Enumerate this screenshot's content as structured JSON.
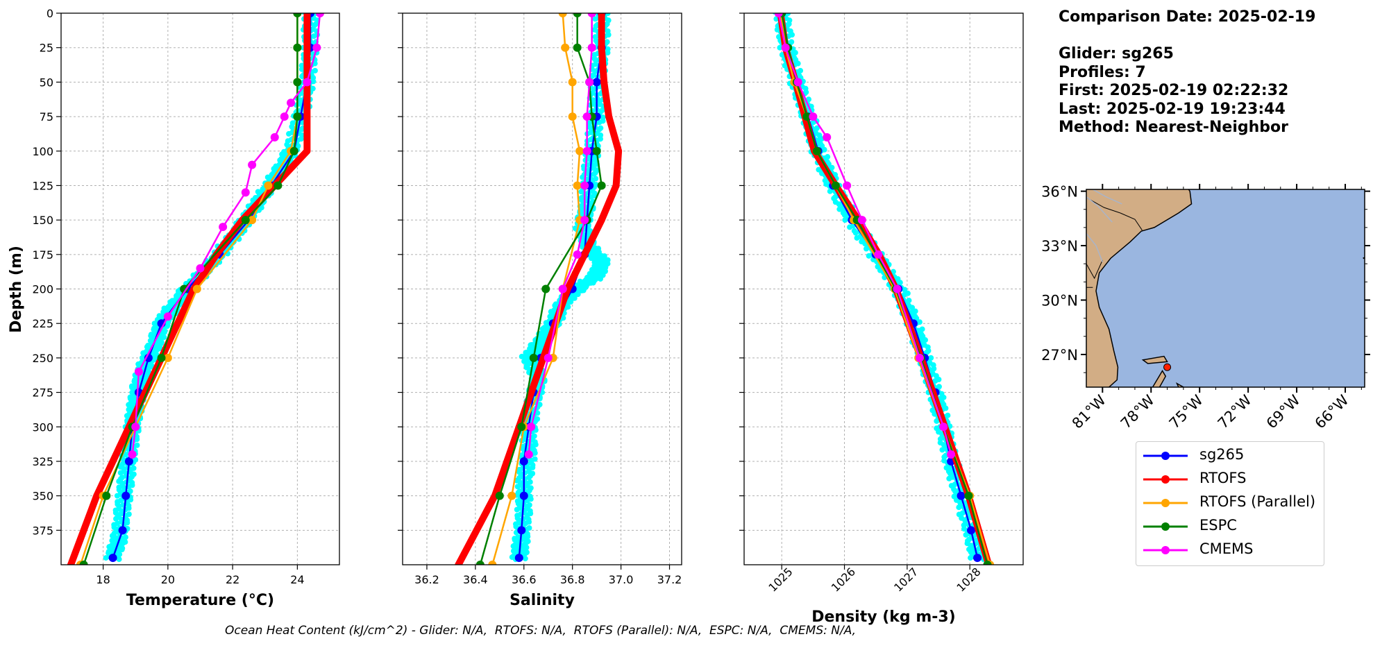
{
  "chart_data": [
    {
      "type": "line",
      "xlabel": "Temperature (°C)",
      "ylabel": "Depth (m)",
      "xlim": [
        16.7,
        25.3
      ],
      "ylim": [
        400,
        0
      ],
      "xticks": [
        "18",
        "20",
        "22",
        "24"
      ],
      "yticks": [
        "0",
        "25",
        "50",
        "75",
        "100",
        "125",
        "150",
        "175",
        "200",
        "225",
        "250",
        "275",
        "300",
        "325",
        "350",
        "375"
      ],
      "grid": true,
      "series": [
        {
          "name": "sg265",
          "color": "#0000ff",
          "depth": [
            0,
            25,
            50,
            75,
            100,
            125,
            150,
            175,
            200,
            225,
            250,
            275,
            300,
            325,
            350,
            375,
            395
          ],
          "values": [
            24.4,
            24.4,
            24.3,
            24.1,
            23.9,
            23.2,
            22.5,
            21.6,
            20.6,
            19.8,
            19.4,
            19.1,
            18.9,
            18.8,
            18.7,
            18.6,
            18.3
          ]
        },
        {
          "name": "RTOFS",
          "color": "#ff0000",
          "depth": [
            0,
            25,
            50,
            75,
            100,
            125,
            150,
            175,
            200,
            250,
            300,
            350,
            400
          ],
          "values": [
            24.3,
            24.3,
            24.3,
            24.3,
            24.3,
            23.3,
            22.3,
            21.5,
            20.8,
            19.8,
            18.8,
            17.8,
            17.0
          ]
        },
        {
          "name": "RTOFS (Parallel)",
          "color": "#ffa500",
          "depth": [
            0,
            25,
            50,
            75,
            100,
            125,
            150,
            200,
            250,
            300,
            350,
            400
          ],
          "values": [
            24.0,
            24.0,
            24.0,
            24.0,
            23.8,
            23.1,
            22.6,
            20.9,
            20.0,
            19.0,
            18.0,
            17.3
          ]
        },
        {
          "name": "ESPC",
          "color": "#008000",
          "depth": [
            0,
            25,
            50,
            75,
            100,
            125,
            150,
            200,
            250,
            300,
            350,
            400
          ],
          "values": [
            24.0,
            24.0,
            24.0,
            24.0,
            23.9,
            23.4,
            22.4,
            20.5,
            19.8,
            18.9,
            18.1,
            17.4
          ]
        },
        {
          "name": "CMEMS",
          "color": "#ff00ff",
          "depth": [
            0,
            25,
            50,
            65,
            75,
            90,
            110,
            130,
            155,
            185,
            220,
            260,
            300,
            320
          ],
          "values": [
            24.7,
            24.6,
            24.3,
            23.8,
            23.6,
            23.3,
            22.6,
            22.4,
            21.7,
            21.0,
            20.0,
            19.1,
            19.0,
            18.9
          ]
        }
      ],
      "scatter": {
        "name": "glider observations",
        "color": "#00ffff",
        "depth": [
          0,
          25,
          50,
          75,
          100,
          120,
          140,
          160,
          180,
          200,
          215,
          225,
          240,
          255,
          270,
          285,
          300,
          320,
          340,
          360,
          380,
          395
        ],
        "values": [
          24.4,
          24.4,
          24.3,
          24.1,
          23.8,
          23.3,
          22.7,
          22.1,
          21.4,
          20.6,
          20.1,
          19.8,
          19.6,
          19.3,
          19.1,
          19.0,
          18.9,
          18.8,
          18.7,
          18.6,
          18.5,
          18.3
        ]
      }
    },
    {
      "type": "line",
      "xlabel": "Salinity",
      "ylim": [
        400,
        0
      ],
      "xlim": [
        36.1,
        37.25
      ],
      "xticks": [
        "36.2",
        "36.4",
        "36.6",
        "36.8",
        "37.0",
        "37.2"
      ],
      "grid": true,
      "series": [
        {
          "name": "sg265",
          "color": "#0000ff",
          "depth": [
            0,
            25,
            50,
            75,
            100,
            125,
            150,
            175,
            200,
            225,
            250,
            275,
            300,
            325,
            350,
            375,
            395
          ],
          "values": [
            36.92,
            36.92,
            36.9,
            36.9,
            36.88,
            36.87,
            36.86,
            36.85,
            36.8,
            36.72,
            36.67,
            36.64,
            36.62,
            36.6,
            36.6,
            36.59,
            36.58
          ]
        },
        {
          "name": "RTOFS",
          "color": "#ff0000",
          "depth": [
            0,
            25,
            50,
            75,
            100,
            125,
            150,
            200,
            250,
            300,
            350,
            400
          ],
          "values": [
            36.92,
            36.92,
            36.93,
            36.95,
            36.99,
            36.98,
            36.92,
            36.78,
            36.68,
            36.58,
            36.48,
            36.33
          ]
        },
        {
          "name": "RTOFS (Parallel)",
          "color": "#ffa500",
          "depth": [
            0,
            25,
            50,
            75,
            100,
            125,
            150,
            200,
            250,
            300,
            350,
            400
          ],
          "values": [
            36.76,
            36.77,
            36.8,
            36.8,
            36.83,
            36.82,
            36.83,
            36.76,
            36.72,
            36.6,
            36.55,
            36.47
          ]
        },
        {
          "name": "ESPC",
          "color": "#008000",
          "depth": [
            0,
            25,
            50,
            75,
            100,
            125,
            150,
            200,
            250,
            300,
            350,
            400
          ],
          "values": [
            36.82,
            36.82,
            36.87,
            36.88,
            36.9,
            36.92,
            36.86,
            36.69,
            36.64,
            36.59,
            36.5,
            36.42
          ]
        },
        {
          "name": "CMEMS",
          "color": "#ff00ff",
          "depth": [
            0,
            25,
            50,
            75,
            100,
            125,
            150,
            175,
            200,
            250,
            300,
            320
          ],
          "values": [
            36.88,
            36.88,
            36.87,
            36.86,
            36.86,
            36.85,
            36.85,
            36.82,
            36.76,
            36.7,
            36.63,
            36.62
          ]
        }
      ],
      "scatter": {
        "name": "glider observations",
        "color": "#00ffff",
        "depth": [
          0,
          25,
          50,
          75,
          100,
          120,
          140,
          155,
          170,
          180,
          190,
          200,
          210,
          225,
          240,
          250,
          265,
          280,
          300,
          320,
          340,
          360,
          380,
          395
        ],
        "values": [
          36.92,
          36.92,
          36.9,
          36.9,
          36.88,
          36.87,
          36.86,
          36.84,
          36.87,
          36.92,
          36.9,
          36.82,
          36.76,
          36.72,
          36.66,
          36.62,
          36.66,
          36.64,
          36.62,
          36.62,
          36.6,
          36.6,
          36.59,
          36.58
        ]
      }
    },
    {
      "type": "line",
      "xlabel": "Density (kg m-3)",
      "ylim": [
        400,
        0
      ],
      "xlim": [
        1024.4,
        1028.85
      ],
      "xticks": [
        "1025",
        "1026",
        "1027",
        "1028"
      ],
      "grid": true,
      "series": [
        {
          "name": "sg265",
          "color": "#0000ff",
          "depth": [
            0,
            25,
            50,
            75,
            100,
            125,
            150,
            175,
            200,
            225,
            250,
            275,
            300,
            325,
            350,
            375,
            395
          ],
          "values": [
            1025.0,
            1025.08,
            1025.24,
            1025.42,
            1025.58,
            1025.82,
            1026.12,
            1026.5,
            1026.86,
            1027.1,
            1027.28,
            1027.45,
            1027.58,
            1027.7,
            1027.86,
            1028.02,
            1028.12
          ]
        },
        {
          "name": "RTOFS",
          "color": "#ff0000",
          "depth": [
            0,
            25,
            50,
            75,
            100,
            125,
            150,
            175,
            200,
            250,
            300,
            350,
            400
          ],
          "values": [
            1024.98,
            1025.06,
            1025.22,
            1025.37,
            1025.52,
            1025.86,
            1026.22,
            1026.55,
            1026.82,
            1027.22,
            1027.6,
            1027.98,
            1028.3
          ]
        },
        {
          "name": "RTOFS (Parallel)",
          "color": "#ffa500",
          "depth": [
            0,
            25,
            50,
            75,
            100,
            125,
            150,
            200,
            250,
            300,
            350,
            400
          ],
          "values": [
            1024.98,
            1025.06,
            1025.2,
            1025.4,
            1025.56,
            1025.86,
            1026.15,
            1026.8,
            1027.18,
            1027.58,
            1028.0,
            1028.32
          ]
        },
        {
          "name": "ESPC",
          "color": "#008000",
          "depth": [
            0,
            25,
            50,
            75,
            100,
            125,
            150,
            200,
            250,
            300,
            350,
            400
          ],
          "values": [
            1025.0,
            1025.1,
            1025.24,
            1025.4,
            1025.56,
            1025.86,
            1026.2,
            1026.82,
            1027.22,
            1027.58,
            1027.98,
            1028.28
          ]
        },
        {
          "name": "CMEMS",
          "color": "#ff00ff",
          "depth": [
            0,
            25,
            50,
            75,
            90,
            125,
            150,
            175,
            200,
            250,
            300,
            320
          ],
          "values": [
            1024.95,
            1025.06,
            1025.26,
            1025.5,
            1025.72,
            1026.04,
            1026.28,
            1026.54,
            1026.84,
            1027.2,
            1027.58,
            1027.7
          ]
        }
      ],
      "scatter": {
        "name": "glider observations",
        "color": "#00ffff",
        "depth": [
          0,
          25,
          50,
          75,
          100,
          125,
          150,
          175,
          200,
          225,
          250,
          275,
          300,
          325,
          350,
          375,
          395
        ],
        "values": [
          1025.0,
          1025.08,
          1025.24,
          1025.42,
          1025.58,
          1025.82,
          1026.12,
          1026.5,
          1026.86,
          1027.1,
          1027.28,
          1027.45,
          1027.58,
          1027.7,
          1027.86,
          1028.02,
          1028.12
        ]
      }
    }
  ],
  "map": {
    "lat_ticks": [
      "36°N",
      "33°N",
      "30°N",
      "27°N"
    ],
    "lon_ticks": [
      "81°W",
      "78°W",
      "75°W",
      "72°W",
      "69°W",
      "66°W"
    ],
    "lat_values": [
      36,
      33,
      30,
      27
    ],
    "lon_values": [
      -81,
      -78,
      -75,
      -72,
      -69,
      -66
    ],
    "lat_range": [
      25.2,
      36.1
    ],
    "lon_range": [
      -82.0,
      -64.8
    ],
    "ocean_color": "#9ab6e0",
    "land_color": "#d2ad85",
    "glider_location": {
      "lat": 26.3,
      "lon": -77.0,
      "color": "#ff2000"
    }
  },
  "info": {
    "comparison_date": "Comparison Date: 2025-02-19",
    "glider": "Glider: sg265",
    "profiles": "Profiles: 7",
    "first": "First: 2025-02-19 02:22:32",
    "last": "Last: 2025-02-19 19:23:44",
    "method": "Method: Nearest-Neighbor"
  },
  "legend": {
    "items": [
      {
        "label": "sg265",
        "color": "#0000ff"
      },
      {
        "label": "RTOFS",
        "color": "#ff0000"
      },
      {
        "label": "RTOFS (Parallel)",
        "color": "#ffa500"
      },
      {
        "label": "ESPC",
        "color": "#008000"
      },
      {
        "label": "CMEMS",
        "color": "#ff00ff"
      }
    ]
  },
  "footer": "Ocean Heat Content (kJ/cm^2) - Glider: N/A,  RTOFS: N/A,  RTOFS (Parallel): N/A,  ESPC: N/A,  CMEMS: N/A,"
}
